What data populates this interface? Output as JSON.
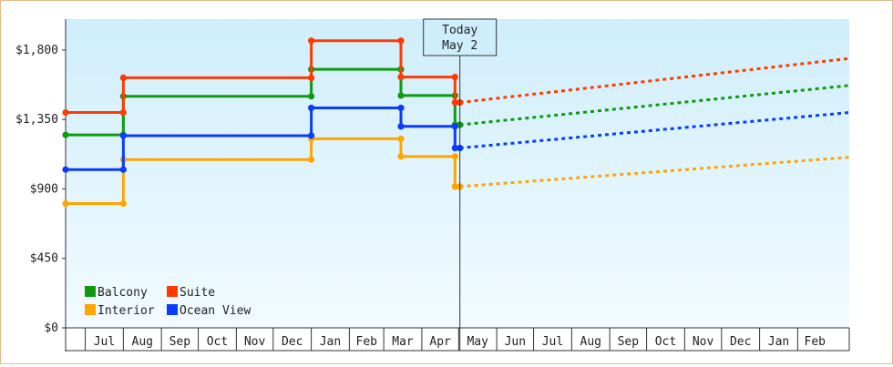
{
  "chart_data": {
    "type": "line",
    "title": "",
    "xlabel": "",
    "ylabel": "",
    "ylim": [
      0,
      2000
    ],
    "yticks": [
      {
        "value": 0,
        "label": "$0"
      },
      {
        "value": 450,
        "label": "$450"
      },
      {
        "value": 900,
        "label": "$900"
      },
      {
        "value": 1350,
        "label": "$1,350"
      },
      {
        "value": 1800,
        "label": "$1,800"
      }
    ],
    "x_range": [
      "2013-06-15",
      "2014-03-15"
    ],
    "xticks": [
      {
        "label": "Jul",
        "start": "2013-07-01",
        "end": "2013-08-01"
      },
      {
        "label": "Aug",
        "start": "2013-08-01",
        "end": "2013-09-01"
      },
      {
        "label": "Sep",
        "start": "2013-09-01",
        "end": "2013-10-01"
      },
      {
        "label": "Oct",
        "start": "2013-10-01",
        "end": "2013-11-01"
      },
      {
        "label": "Nov",
        "start": "2013-11-01",
        "end": "2013-12-01"
      },
      {
        "label": "Dec",
        "start": "2013-12-01",
        "end": "2014-01-01"
      },
      {
        "label": "Jan",
        "start": "2014-01-01",
        "end": "2014-02-01"
      },
      {
        "label": "Feb",
        "start": "2014-02-01",
        "end": "2014-03-01"
      },
      {
        "label": "Mar",
        "start": "2014-03-01",
        "end": "2014-04-01"
      },
      {
        "label": "Apr",
        "start": "2014-04-01",
        "end": "2014-05-01"
      },
      {
        "label": "May",
        "start": "2014-05-01",
        "end": "2014-06-01"
      },
      {
        "label": "Jun",
        "start": "2014-06-01",
        "end": "2014-07-01"
      },
      {
        "label": "Jul",
        "start": "2014-07-01",
        "end": "2014-08-01"
      },
      {
        "label": "Aug",
        "start": "2014-08-01",
        "end": "2014-09-01"
      },
      {
        "label": "Sep",
        "start": "2014-09-01",
        "end": "2014-10-01"
      },
      {
        "label": "Oct",
        "start": "2014-10-01",
        "end": "2014-11-01"
      },
      {
        "label": "Nov",
        "start": "2014-11-01",
        "end": "2014-12-01"
      },
      {
        "label": "Dec",
        "start": "2014-12-01",
        "end": "2015-01-01"
      },
      {
        "label": "Jan",
        "start": "2015-01-01",
        "end": "2015-02-01"
      },
      {
        "label": "Feb",
        "start": "2015-02-01",
        "end": "2015-03-01"
      }
    ],
    "x_end": "2015-03-15",
    "today": {
      "date": "2014-05-02",
      "label_top": "Today",
      "label_bottom": "May 2"
    },
    "series": [
      {
        "name": "Balcony",
        "color": "#0f9a0f",
        "historical": [
          {
            "x": "2013-06-15",
            "y": 1250
          },
          {
            "x": "2013-08-01",
            "y": 1250
          },
          {
            "x": "2013-08-01",
            "y": 1500
          },
          {
            "x": "2014-01-01",
            "y": 1500
          },
          {
            "x": "2014-01-01",
            "y": 1675
          },
          {
            "x": "2014-03-15",
            "y": 1675
          },
          {
            "x": "2014-03-15",
            "y": 1505
          },
          {
            "x": "2014-04-28",
            "y": 1505
          },
          {
            "x": "2014-04-28",
            "y": 1315
          },
          {
            "x": "2014-05-02",
            "y": 1315
          }
        ],
        "forecast": [
          {
            "x": "2014-05-02",
            "y": 1315
          },
          {
            "x": "2015-03-15",
            "y": 1570
          }
        ]
      },
      {
        "name": "Suite",
        "color": "#ff3a00",
        "historical": [
          {
            "x": "2013-06-15",
            "y": 1395
          },
          {
            "x": "2013-08-01",
            "y": 1395
          },
          {
            "x": "2013-08-01",
            "y": 1620
          },
          {
            "x": "2014-01-01",
            "y": 1620
          },
          {
            "x": "2014-01-01",
            "y": 1860
          },
          {
            "x": "2014-03-15",
            "y": 1860
          },
          {
            "x": "2014-03-15",
            "y": 1625
          },
          {
            "x": "2014-04-28",
            "y": 1625
          },
          {
            "x": "2014-04-28",
            "y": 1460
          },
          {
            "x": "2014-05-02",
            "y": 1460
          }
        ],
        "forecast": [
          {
            "x": "2014-05-02",
            "y": 1460
          },
          {
            "x": "2015-03-15",
            "y": 1745
          }
        ]
      },
      {
        "name": "Interior",
        "color": "#ffa500",
        "historical": [
          {
            "x": "2013-06-15",
            "y": 805
          },
          {
            "x": "2013-08-01",
            "y": 805
          },
          {
            "x": "2013-08-01",
            "y": 1090
          },
          {
            "x": "2014-01-01",
            "y": 1090
          },
          {
            "x": "2014-01-01",
            "y": 1225
          },
          {
            "x": "2014-03-15",
            "y": 1225
          },
          {
            "x": "2014-03-15",
            "y": 1110
          },
          {
            "x": "2014-04-28",
            "y": 1110
          },
          {
            "x": "2014-04-28",
            "y": 915
          },
          {
            "x": "2014-05-02",
            "y": 915
          }
        ],
        "forecast": [
          {
            "x": "2014-05-02",
            "y": 915
          },
          {
            "x": "2015-03-15",
            "y": 1105
          }
        ]
      },
      {
        "name": "Ocean View",
        "color": "#0a3cff",
        "historical": [
          {
            "x": "2013-06-15",
            "y": 1025
          },
          {
            "x": "2013-08-01",
            "y": 1025
          },
          {
            "x": "2013-08-01",
            "y": 1245
          },
          {
            "x": "2014-01-01",
            "y": 1245
          },
          {
            "x": "2014-01-01",
            "y": 1425
          },
          {
            "x": "2014-03-15",
            "y": 1425
          },
          {
            "x": "2014-03-15",
            "y": 1305
          },
          {
            "x": "2014-04-28",
            "y": 1305
          },
          {
            "x": "2014-04-28",
            "y": 1165
          },
          {
            "x": "2014-05-02",
            "y": 1165
          }
        ],
        "forecast": [
          {
            "x": "2014-05-02",
            "y": 1165
          },
          {
            "x": "2015-03-15",
            "y": 1395
          }
        ]
      }
    ],
    "legend": {
      "placement": "bottom-left",
      "order": [
        "Balcony",
        "Suite",
        "Interior",
        "Ocean View"
      ]
    },
    "grid": false,
    "background": {
      "top": "#cfeefb",
      "bottom": "#f2fbff"
    }
  }
}
